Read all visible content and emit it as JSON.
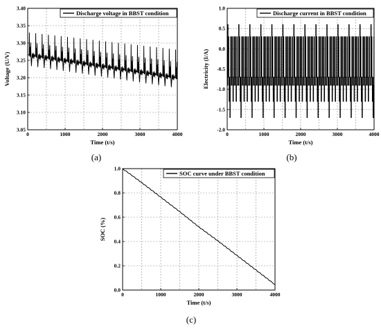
{
  "chart_data": [
    {
      "type": "line",
      "panel_label": "(a)",
      "title": "",
      "xlabel": "Time (t/s)",
      "ylabel": "Voltage (U/V)",
      "xlim": [
        0,
        4000
      ],
      "ylim": [
        3.05,
        3.4
      ],
      "x_ticks": [
        0,
        1000,
        2000,
        3000,
        4000
      ],
      "x_tick_labels": [
        "0",
        "1000",
        "2000",
        "3000",
        "4000"
      ],
      "y_ticks": [
        3.05,
        3.1,
        3.15,
        3.2,
        3.25,
        3.3,
        3.35,
        3.4
      ],
      "y_tick_labels": [
        "3.05",
        "3.10",
        "3.15",
        "3.20",
        "3.25",
        "3.30",
        "3.35",
        "3.40"
      ],
      "x_minor_grid": [
        500,
        1500,
        2500,
        3500
      ],
      "grid": true,
      "legend_position": "top-right",
      "series": [
        {
          "name": "Discharge voltage in BBST condition",
          "baseline": {
            "x": [
              0,
              4000
            ],
            "y": [
              3.266,
              3.2
            ]
          },
          "period_s": 170,
          "phase_s": 40,
          "spike_peak": {
            "x": [
              0,
              4000
            ],
            "y": [
              3.33,
              3.28
            ]
          },
          "dip_low": {
            "x": [
              0,
              4000
            ],
            "y": [
              3.235,
              3.17
            ]
          }
        }
      ]
    },
    {
      "type": "line",
      "panel_label": "(b)",
      "title": "",
      "xlabel": "Time (t/s)",
      "ylabel": "Electricity (I/A)",
      "xlim": [
        0,
        4000
      ],
      "ylim": [
        -2.0,
        1.0
      ],
      "x_ticks": [
        0,
        1000,
        2000,
        3000,
        4000
      ],
      "x_tick_labels": [
        "0",
        "1000",
        "2000",
        "3000",
        "4000"
      ],
      "y_ticks": [
        -2.0,
        -1.5,
        -1.0,
        -0.5,
        0.0,
        0.5,
        1.0
      ],
      "y_tick_labels": [
        "-2.0",
        "-1.5",
        "-1.0",
        "-0.5",
        "0.0",
        "0.5",
        "1.0"
      ],
      "x_minor_grid": [
        500,
        1500,
        2500,
        3500
      ],
      "grid": true,
      "legend_position": "top-right",
      "series": [
        {
          "name": "Discharge current in BBST condition",
          "current_levels": [
            0.6,
            0.3,
            -0.7,
            -0.9,
            -1.3,
            -1.7
          ],
          "period_s": 300
        }
      ]
    },
    {
      "type": "line",
      "panel_label": "(c)",
      "title": "",
      "xlabel": "Time (t/s)",
      "ylabel": "SOC (%)",
      "xlim": [
        0,
        4000
      ],
      "ylim": [
        0.0,
        1.0
      ],
      "x_ticks": [
        0,
        1000,
        2000,
        3000,
        4000
      ],
      "x_tick_labels": [
        "0",
        "1000",
        "2000",
        "3000",
        "4000"
      ],
      "y_ticks": [
        0.0,
        0.2,
        0.4,
        0.6,
        0.8,
        1.0
      ],
      "y_tick_labels": [
        "0.0",
        "0.2",
        "0.4",
        "0.6",
        "0.8",
        "1.0"
      ],
      "x_minor_grid": [
        500,
        1500,
        2500,
        3500
      ],
      "grid": true,
      "legend_position": "top-right",
      "series": [
        {
          "name": "SOC curve under BBST condition",
          "x": [
            0,
            500,
            1000,
            1500,
            2000,
            2500,
            3000,
            3500,
            4000
          ],
          "y": [
            1.0,
            0.885,
            0.765,
            0.645,
            0.52,
            0.405,
            0.285,
            0.165,
            0.045
          ]
        }
      ]
    }
  ]
}
